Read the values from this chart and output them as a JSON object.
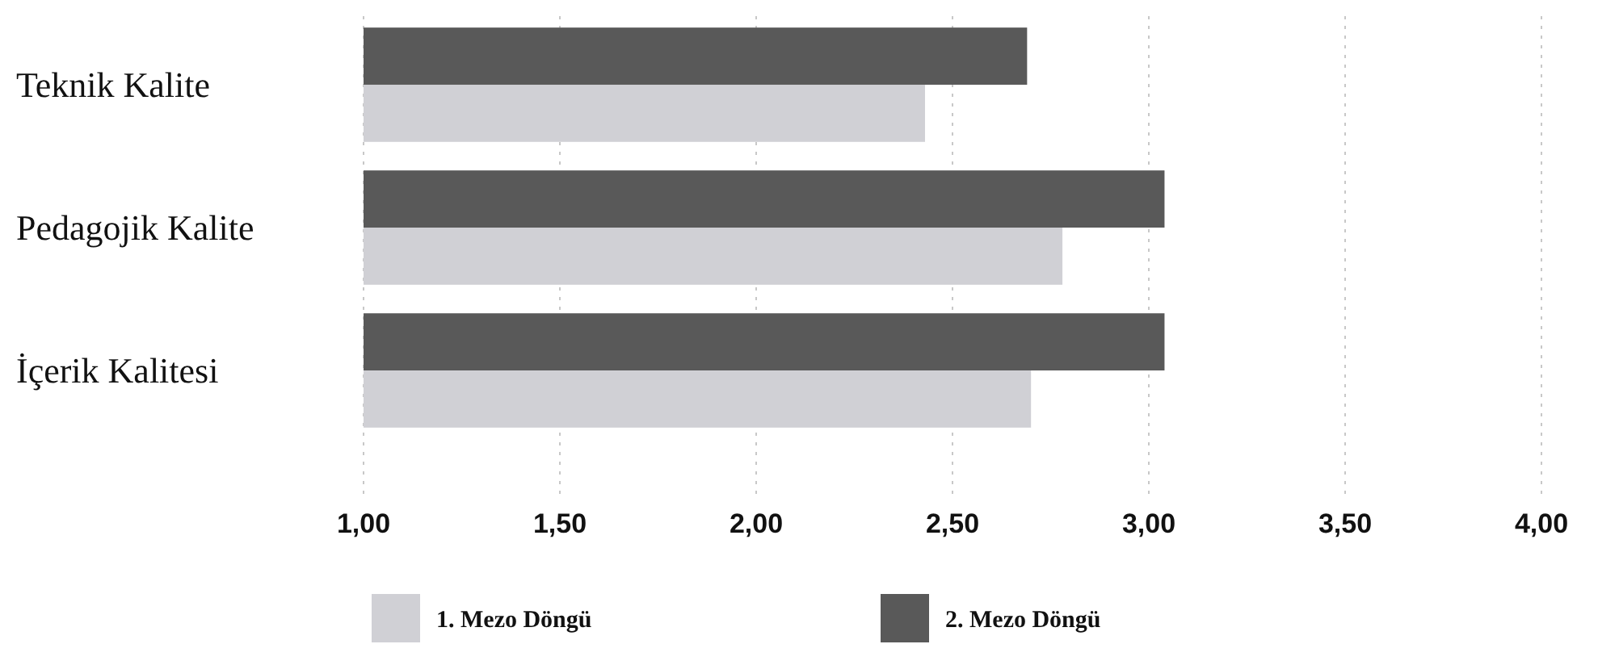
{
  "chart_data": {
    "type": "bar",
    "orientation": "horizontal",
    "categories": [
      "Teknik Kalite",
      "Pedagojik Kalite",
      "İçerik Kalitesi"
    ],
    "series": [
      {
        "name": "2. Mezo Döngü",
        "color": "#595959",
        "values": [
          2.69,
          3.04,
          3.04
        ]
      },
      {
        "name": "1. Mezo Döngü",
        "color": "#d0d0d5",
        "values": [
          2.43,
          2.78,
          2.7
        ]
      }
    ],
    "xlim": [
      1,
      4
    ],
    "xticks": [
      {
        "value": 1,
        "label": "1,00"
      },
      {
        "value": 1.5,
        "label": "1,50"
      },
      {
        "value": 2,
        "label": "2,00"
      },
      {
        "value": 2.5,
        "label": "2,50"
      },
      {
        "value": 3,
        "label": "3,00"
      },
      {
        "value": 3.5,
        "label": "3,50"
      },
      {
        "value": 4,
        "label": "4,00"
      }
    ],
    "grid": "x",
    "legend": "bottom"
  }
}
